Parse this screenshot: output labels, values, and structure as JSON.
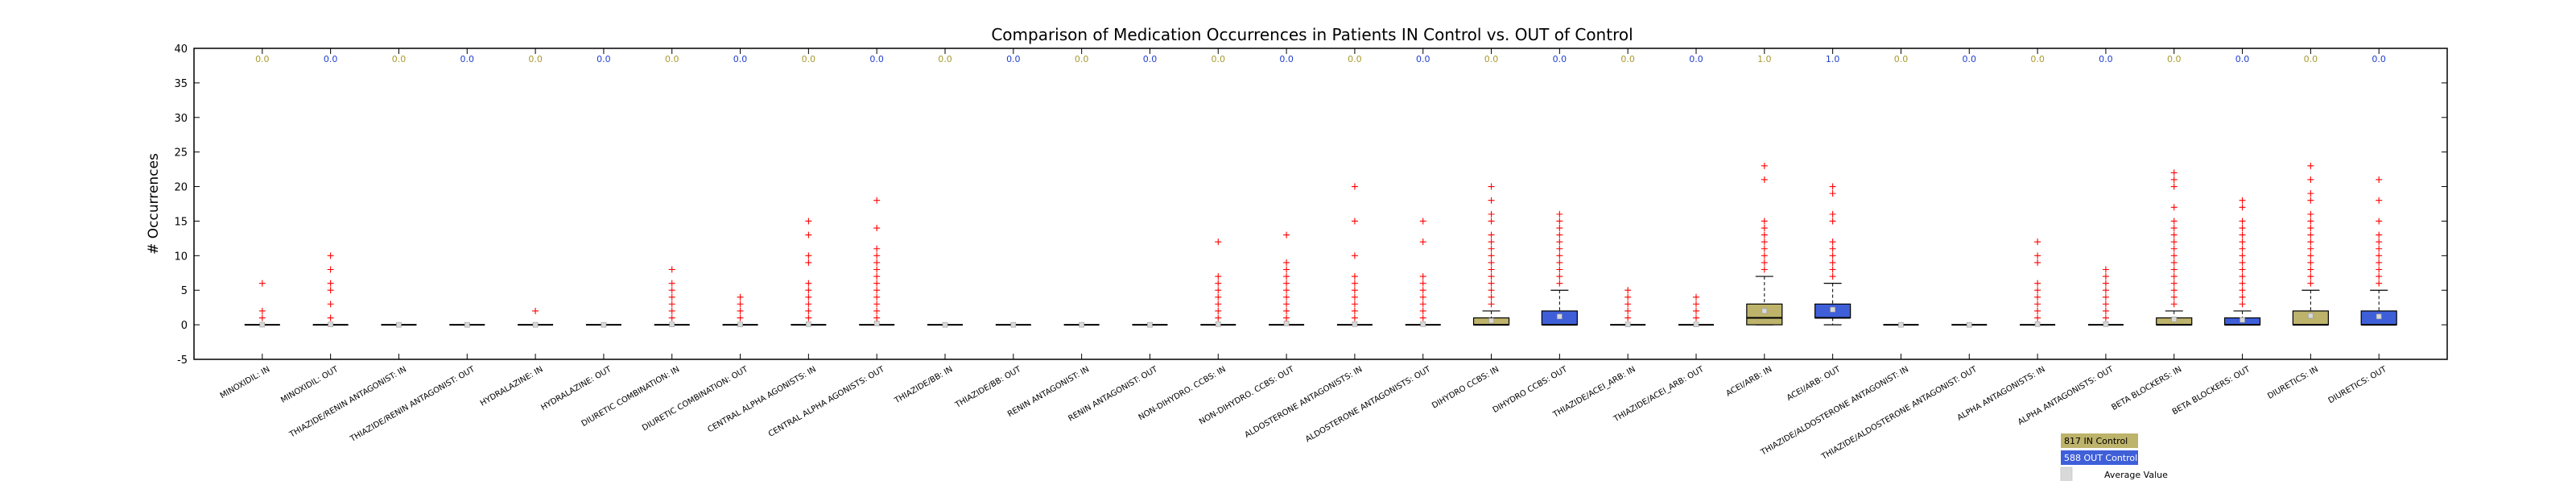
{
  "chart_data": {
    "type": "box",
    "title": "Comparison of Medication Occurrences in Patients IN Control vs. OUT of Control",
    "xlabel": "",
    "ylabel": "# Occurrences",
    "ylim": [
      -5,
      40
    ],
    "yticks": [
      -5,
      0,
      5,
      10,
      15,
      20,
      25,
      30,
      35,
      40
    ],
    "grid": false,
    "colors": {
      "in": "#bdb36b",
      "out": "#3f5fd9",
      "in_label": "#a89a2e",
      "out_label": "#1f3fd0",
      "flier": "#ff0000"
    },
    "legend": {
      "placement": "bottom-right",
      "entries": [
        {
          "label": "817 IN Control",
          "series": "in"
        },
        {
          "label": "588 OUT Control",
          "series": "out"
        },
        {
          "label": "Average Value",
          "series": "mean"
        }
      ]
    },
    "boxes": [
      {
        "category": "MINOXIDIL: IN",
        "group": "in",
        "median_label": "0.0",
        "q1": 0,
        "median": 0,
        "q3": 0,
        "whisker_low": 0,
        "whisker_high": 0,
        "mean": 0.02,
        "fliers": [
          1,
          2,
          6
        ]
      },
      {
        "category": "MINOXIDIL: OUT",
        "group": "out",
        "median_label": "0.0",
        "q1": 0,
        "median": 0,
        "q3": 0,
        "whisker_low": 0,
        "whisker_high": 0,
        "mean": 0.05,
        "fliers": [
          1,
          3,
          5,
          6,
          8,
          10
        ]
      },
      {
        "category": "THIAZIDE/RENIN ANTAGONIST: IN",
        "group": "in",
        "median_label": "0.0",
        "q1": 0,
        "median": 0,
        "q3": 0,
        "whisker_low": 0,
        "whisker_high": 0,
        "mean": 0,
        "fliers": []
      },
      {
        "category": "THIAZIDE/RENIN ANTAGONIST: OUT",
        "group": "out",
        "median_label": "0.0",
        "q1": 0,
        "median": 0,
        "q3": 0,
        "whisker_low": 0,
        "whisker_high": 0,
        "mean": 0,
        "fliers": []
      },
      {
        "category": "HYDRALAZINE: IN",
        "group": "in",
        "median_label": "0.0",
        "q1": 0,
        "median": 0,
        "q3": 0,
        "whisker_low": 0,
        "whisker_high": 0,
        "mean": 0,
        "fliers": [
          2
        ]
      },
      {
        "category": "HYDRALAZINE: OUT",
        "group": "out",
        "median_label": "0.0",
        "q1": 0,
        "median": 0,
        "q3": 0,
        "whisker_low": 0,
        "whisker_high": 0,
        "mean": 0,
        "fliers": []
      },
      {
        "category": "DIURETIC COMBINATION: IN",
        "group": "in",
        "median_label": "0.0",
        "q1": 0,
        "median": 0,
        "q3": 0,
        "whisker_low": 0,
        "whisker_high": 0,
        "mean": 0.05,
        "fliers": [
          1,
          2,
          3,
          4,
          5,
          6,
          8
        ]
      },
      {
        "category": "DIURETIC COMBINATION: OUT",
        "group": "out",
        "median_label": "0.0",
        "q1": 0,
        "median": 0,
        "q3": 0,
        "whisker_low": 0,
        "whisker_high": 0,
        "mean": 0.05,
        "fliers": [
          1,
          2,
          3,
          4
        ]
      },
      {
        "category": "CENTRAL ALPHA AGONISTS: IN",
        "group": "in",
        "median_label": "0.0",
        "q1": 0,
        "median": 0,
        "q3": 0,
        "whisker_low": 0,
        "whisker_high": 0,
        "mean": 0.1,
        "fliers": [
          1,
          2,
          3,
          4,
          5,
          6,
          9,
          10,
          13,
          15
        ]
      },
      {
        "category": "CENTRAL ALPHA AGONISTS: OUT",
        "group": "out",
        "median_label": "0.0",
        "q1": 0,
        "median": 0,
        "q3": 0,
        "whisker_low": 0,
        "whisker_high": 0,
        "mean": 0.2,
        "fliers": [
          1,
          2,
          3,
          4,
          5,
          6,
          7,
          8,
          9,
          10,
          11,
          14,
          18
        ]
      },
      {
        "category": "THIAZIDE/BB: IN",
        "group": "in",
        "median_label": "0.0",
        "q1": 0,
        "median": 0,
        "q3": 0,
        "whisker_low": 0,
        "whisker_high": 0,
        "mean": 0,
        "fliers": []
      },
      {
        "category": "THIAZIDE/BB: OUT",
        "group": "out",
        "median_label": "0.0",
        "q1": 0,
        "median": 0,
        "q3": 0,
        "whisker_low": 0,
        "whisker_high": 0,
        "mean": 0,
        "fliers": []
      },
      {
        "category": "RENIN ANTAGONIST: IN",
        "group": "in",
        "median_label": "0.0",
        "q1": 0,
        "median": 0,
        "q3": 0,
        "whisker_low": 0,
        "whisker_high": 0,
        "mean": 0,
        "fliers": []
      },
      {
        "category": "RENIN ANTAGONIST: OUT",
        "group": "out",
        "median_label": "0.0",
        "q1": 0,
        "median": 0,
        "q3": 0,
        "whisker_low": 0,
        "whisker_high": 0,
        "mean": 0,
        "fliers": []
      },
      {
        "category": "NON-DIHYDRO. CCBS: IN",
        "group": "in",
        "median_label": "0.0",
        "q1": 0,
        "median": 0,
        "q3": 0,
        "whisker_low": 0,
        "whisker_high": 0,
        "mean": 0.1,
        "fliers": [
          1,
          2,
          3,
          4,
          5,
          6,
          7,
          12
        ]
      },
      {
        "category": "NON-DIHYDRO. CCBS: OUT",
        "group": "out",
        "median_label": "0.0",
        "q1": 0,
        "median": 0,
        "q3": 0,
        "whisker_low": 0,
        "whisker_high": 0,
        "mean": 0.2,
        "fliers": [
          1,
          2,
          3,
          4,
          5,
          6,
          7,
          8,
          9,
          13
        ]
      },
      {
        "category": "ALDOSTERONE ANTAGONISTS: IN",
        "group": "in",
        "median_label": "0.0",
        "q1": 0,
        "median": 0,
        "q3": 0,
        "whisker_low": 0,
        "whisker_high": 0,
        "mean": 0.1,
        "fliers": [
          1,
          2,
          3,
          4,
          5,
          6,
          7,
          10,
          15,
          20
        ]
      },
      {
        "category": "ALDOSTERONE ANTAGONISTS: OUT",
        "group": "out",
        "median_label": "0.0",
        "q1": 0,
        "median": 0,
        "q3": 0,
        "whisker_low": 0,
        "whisker_high": 0,
        "mean": 0.1,
        "fliers": [
          1,
          2,
          3,
          4,
          5,
          6,
          7,
          12,
          15
        ]
      },
      {
        "category": "DIHYDRO CCBS: IN",
        "group": "in",
        "median_label": "0.0",
        "q1": 0,
        "median": 0,
        "q3": 1,
        "whisker_low": 0,
        "whisker_high": 2,
        "mean": 0.6,
        "fliers": [
          3,
          4,
          5,
          6,
          7,
          8,
          9,
          10,
          11,
          12,
          13,
          15,
          16,
          18,
          20
        ]
      },
      {
        "category": "DIHYDRO CCBS: OUT",
        "group": "out",
        "median_label": "0.0",
        "q1": 0,
        "median": 0,
        "q3": 2,
        "whisker_low": 0,
        "whisker_high": 5,
        "mean": 1.2,
        "fliers": [
          6,
          7,
          8,
          9,
          10,
          11,
          12,
          13,
          14,
          15,
          16
        ]
      },
      {
        "category": "THIAZIDE/ACEI_ARB: IN",
        "group": "in",
        "median_label": "0.0",
        "q1": 0,
        "median": 0,
        "q3": 0,
        "whisker_low": 0,
        "whisker_high": 0,
        "mean": 0.05,
        "fliers": [
          1,
          2,
          3,
          4,
          5
        ]
      },
      {
        "category": "THIAZIDE/ACEI_ARB: OUT",
        "group": "out",
        "median_label": "0.0",
        "q1": 0,
        "median": 0,
        "q3": 0,
        "whisker_low": 0,
        "whisker_high": 0,
        "mean": 0.05,
        "fliers": [
          1,
          2,
          3,
          4
        ]
      },
      {
        "category": "ACEI/ARB: IN",
        "group": "in",
        "median_label": "1.0",
        "q1": 0,
        "median": 1,
        "q3": 3,
        "whisker_low": 0,
        "whisker_high": 7,
        "mean": 2.0,
        "fliers": [
          8,
          9,
          10,
          11,
          12,
          13,
          14,
          15,
          21,
          23
        ]
      },
      {
        "category": "ACEI/ARB: OUT",
        "group": "out",
        "median_label": "1.0",
        "q1": 1,
        "median": 1,
        "q3": 3,
        "whisker_low": 0,
        "whisker_high": 6,
        "mean": 2.2,
        "fliers": [
          7,
          8,
          9,
          10,
          11,
          12,
          15,
          16,
          19,
          20
        ]
      },
      {
        "category": "THIAZIDE/ALDOSTERONE ANTAGONIST: IN",
        "group": "in",
        "median_label": "0.0",
        "q1": 0,
        "median": 0,
        "q3": 0,
        "whisker_low": 0,
        "whisker_high": 0,
        "mean": 0,
        "fliers": []
      },
      {
        "category": "THIAZIDE/ALDOSTERONE ANTAGONIST: OUT",
        "group": "out",
        "median_label": "0.0",
        "q1": 0,
        "median": 0,
        "q3": 0,
        "whisker_low": 0,
        "whisker_high": 0,
        "mean": 0,
        "fliers": []
      },
      {
        "category": "ALPHA ANTAGONISTS: IN",
        "group": "in",
        "median_label": "0.0",
        "q1": 0,
        "median": 0,
        "q3": 0,
        "whisker_low": 0,
        "whisker_high": 0,
        "mean": 0.1,
        "fliers": [
          1,
          2,
          3,
          4,
          5,
          6,
          9,
          10,
          12
        ]
      },
      {
        "category": "ALPHA ANTAGONISTS: OUT",
        "group": "out",
        "median_label": "0.0",
        "q1": 0,
        "median": 0,
        "q3": 0,
        "whisker_low": 0,
        "whisker_high": 0,
        "mean": 0.1,
        "fliers": [
          1,
          2,
          3,
          4,
          5,
          6,
          7,
          8
        ]
      },
      {
        "category": "BETA BLOCKERS: IN",
        "group": "in",
        "median_label": "0.0",
        "q1": 0,
        "median": 0,
        "q3": 1,
        "whisker_low": 0,
        "whisker_high": 2,
        "mean": 0.8,
        "fliers": [
          3,
          4,
          5,
          6,
          7,
          8,
          9,
          10,
          11,
          12,
          13,
          14,
          15,
          17,
          20,
          21,
          22
        ]
      },
      {
        "category": "BETA BLOCKERS: OUT",
        "group": "out",
        "median_label": "0.0",
        "q1": 0,
        "median": 0,
        "q3": 1,
        "whisker_low": 0,
        "whisker_high": 2,
        "mean": 0.7,
        "fliers": [
          3,
          4,
          5,
          6,
          7,
          8,
          9,
          10,
          11,
          12,
          13,
          14,
          15,
          17,
          18
        ]
      },
      {
        "category": "DIURETICS: IN",
        "group": "in",
        "median_label": "0.0",
        "q1": 0,
        "median": 0,
        "q3": 2,
        "whisker_low": 0,
        "whisker_high": 5,
        "mean": 1.3,
        "fliers": [
          6,
          7,
          8,
          9,
          10,
          11,
          12,
          13,
          14,
          15,
          16,
          18,
          19,
          21,
          23
        ]
      },
      {
        "category": "DIURETICS: OUT",
        "group": "out",
        "median_label": "0.0",
        "q1": 0,
        "median": 0,
        "q3": 2,
        "whisker_low": 0,
        "whisker_high": 5,
        "mean": 1.2,
        "fliers": [
          6,
          7,
          8,
          9,
          10,
          11,
          12,
          13,
          15,
          18,
          21
        ]
      }
    ]
  }
}
